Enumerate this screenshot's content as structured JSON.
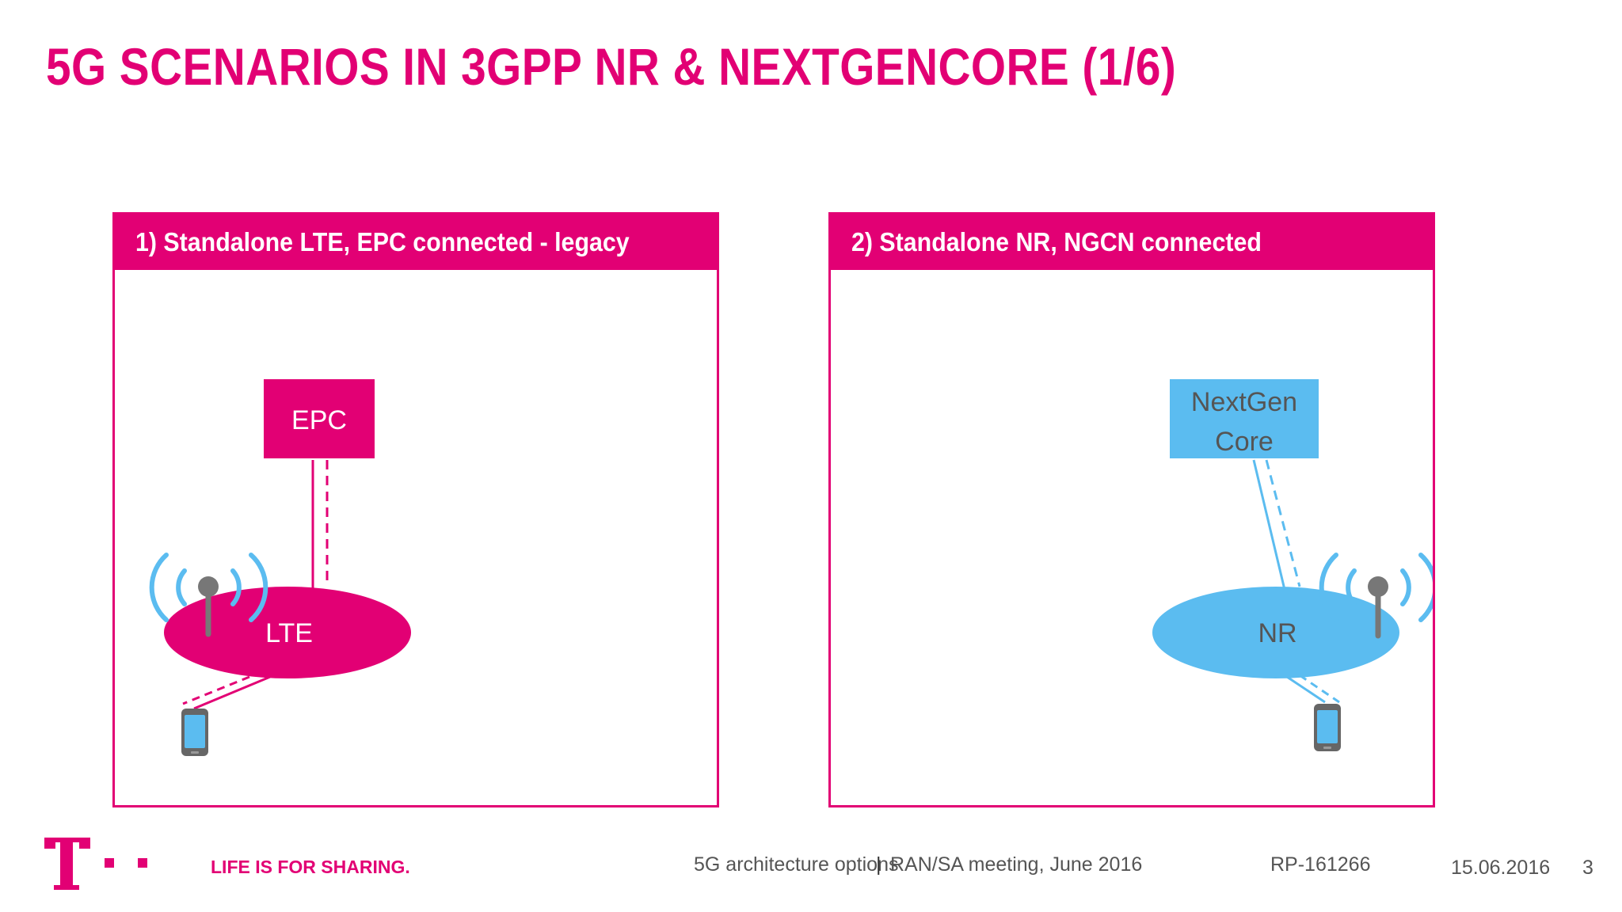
{
  "title": "5G SCENARIOS IN 3GPP NR & NEXTGENCORE (1/6)",
  "colors": {
    "magenta": "#e20074",
    "blue": "#5bbcf0",
    "gray": "#777777"
  },
  "panels": [
    {
      "header": "1)   Standalone LTE, EPC connected - legacy",
      "core_label": "EPC",
      "ran_label": "LTE"
    },
    {
      "header": "2) Standalone NR, NGCN connected",
      "core_label_line1": "NextGen",
      "core_label_line2": "Core",
      "ran_label": "NR"
    }
  ],
  "footer": {
    "slogan": "LIFE IS FOR SHARING.",
    "topic": "5G architecture options",
    "separator": "|",
    "meeting": "RAN/SA meeting, June 2016",
    "doc_id": "RP-161266",
    "date": "15.06.2016",
    "page": "3"
  },
  "icons": [
    "telekom-logo-icon",
    "antenna-icon",
    "radio-waves-icon",
    "smartphone-icon"
  ]
}
